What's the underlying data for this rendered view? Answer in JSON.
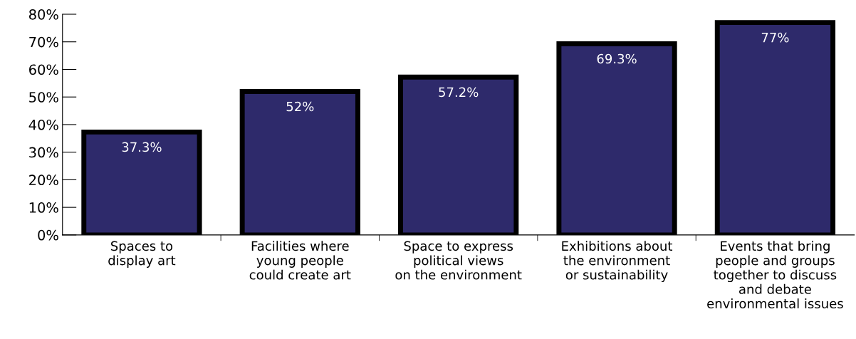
{
  "chart_data": {
    "type": "bar",
    "categories": [
      "Spaces to\ndisplay art",
      "Facilities where\nyoung people\ncould create art",
      "Space to express\npolitical views\non the environment",
      "Exhibitions about\nthe environment\nor sustainability",
      "Events that bring\npeople and groups\ntogether to discuss\nand debate\nenvironmental issues"
    ],
    "values": [
      37.3,
      52,
      57.2,
      69.3,
      77
    ],
    "value_labels": [
      "37.3%",
      "52%",
      "57.2%",
      "69.3%",
      "77%"
    ],
    "color": "#2e2a6b",
    "ylim": [
      0,
      80
    ],
    "yticks": [
      {
        "value": 0,
        "label": "0%"
      },
      {
        "value": 10,
        "label": "10%"
      },
      {
        "value": 20,
        "label": "20%"
      },
      {
        "value": 30,
        "label": "30%"
      },
      {
        "value": 40,
        "label": "40%"
      },
      {
        "value": 50,
        "label": "50%"
      },
      {
        "value": 60,
        "label": "60%"
      },
      {
        "value": 70,
        "label": "70%"
      },
      {
        "value": 80,
        "label": "80%"
      }
    ],
    "grid": false,
    "legend": false
  }
}
